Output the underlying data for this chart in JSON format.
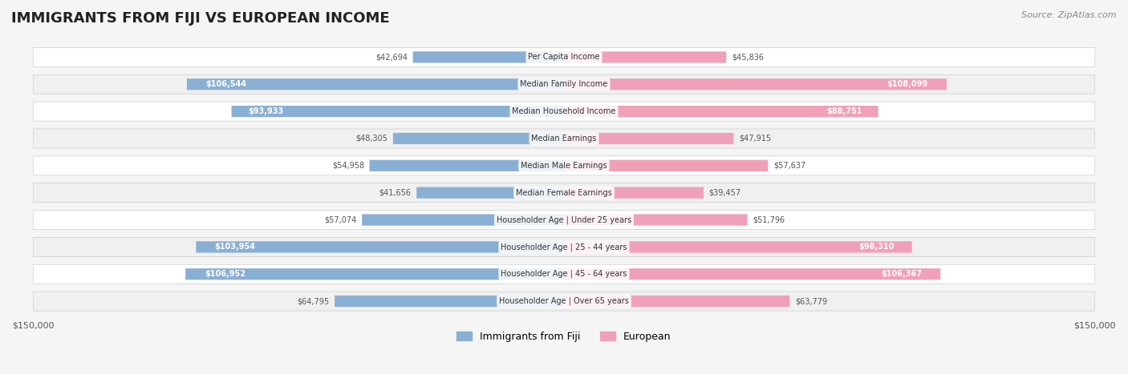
{
  "title": "IMMIGRANTS FROM FIJI VS EUROPEAN INCOME",
  "source": "Source: ZipAtlas.com",
  "categories": [
    "Per Capita Income",
    "Median Family Income",
    "Median Household Income",
    "Median Earnings",
    "Median Male Earnings",
    "Median Female Earnings",
    "Householder Age | Under 25 years",
    "Householder Age | 25 - 44 years",
    "Householder Age | 45 - 64 years",
    "Householder Age | Over 65 years"
  ],
  "fiji_values": [
    42694,
    106544,
    93933,
    48305,
    54958,
    41656,
    57074,
    103954,
    106952,
    64795
  ],
  "european_values": [
    45836,
    108099,
    88751,
    47915,
    57637,
    39457,
    51796,
    98310,
    106367,
    63779
  ],
  "fiji_labels": [
    "$42,694",
    "$106,544",
    "$93,933",
    "$48,305",
    "$54,958",
    "$41,656",
    "$57,074",
    "$103,954",
    "$106,952",
    "$64,795"
  ],
  "european_labels": [
    "$45,836",
    "$108,099",
    "$88,751",
    "$47,915",
    "$57,637",
    "$39,457",
    "$51,796",
    "$98,310",
    "$106,367",
    "$63,779"
  ],
  "fiji_color": "#8aafd4",
  "fiji_color_dark": "#5b8fc4",
  "european_color": "#f0a0b8",
  "european_color_dark": "#e8608a",
  "max_value": 150000,
  "fiji_label_color_inside": "#ffffff",
  "fiji_label_color_outside": "#555555",
  "european_label_color_inside": "#ffffff",
  "european_label_color_outside": "#555555",
  "fiji_inside_threshold": 80000,
  "european_inside_threshold": 80000,
  "background_color": "#f5f5f5",
  "row_background": "#ffffff",
  "row_alt_background": "#f0f0f0"
}
